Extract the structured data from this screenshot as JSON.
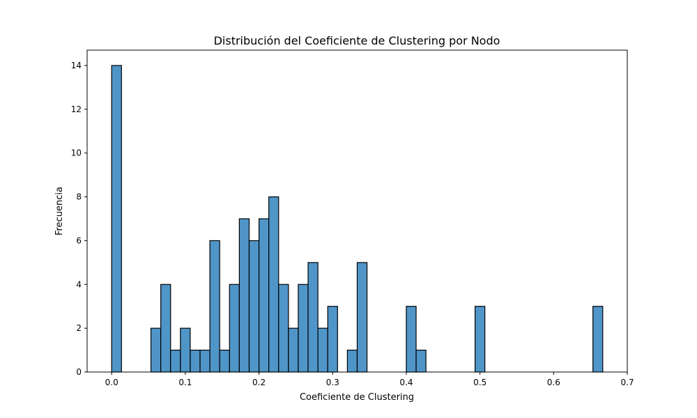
{
  "chart_data": {
    "type": "bar",
    "title": "Distribución del Coeficiente de Clustering por Nodo",
    "xlabel": "Coeficiente de Clustering",
    "ylabel": "Frecuencia",
    "xlim": [
      -0.0333,
      0.7
    ],
    "ylim": [
      0,
      14.7
    ],
    "bin_width": 0.01333,
    "x_ticks": [
      0.0,
      0.1,
      0.2,
      0.3,
      0.4,
      0.5,
      0.6,
      0.7
    ],
    "x_tick_labels": [
      "0.0",
      "0.1",
      "0.2",
      "0.3",
      "0.4",
      "0.5",
      "0.6",
      "0.7"
    ],
    "y_ticks": [
      0,
      2,
      4,
      6,
      8,
      10,
      12,
      14
    ],
    "y_tick_labels": [
      "0",
      "2",
      "4",
      "6",
      "8",
      "10",
      "12",
      "14"
    ],
    "grid": false,
    "bar_color": "#5095c8",
    "edge_color": "#000000",
    "bins": [
      {
        "x0": 0.0,
        "count": 14
      },
      {
        "x0": 0.05333,
        "count": 2
      },
      {
        "x0": 0.06667,
        "count": 4
      },
      {
        "x0": 0.08,
        "count": 1
      },
      {
        "x0": 0.09333,
        "count": 2
      },
      {
        "x0": 0.10667,
        "count": 1
      },
      {
        "x0": 0.12,
        "count": 1
      },
      {
        "x0": 0.13333,
        "count": 6
      },
      {
        "x0": 0.14667,
        "count": 1
      },
      {
        "x0": 0.16,
        "count": 4
      },
      {
        "x0": 0.17333,
        "count": 7
      },
      {
        "x0": 0.18667,
        "count": 6
      },
      {
        "x0": 0.2,
        "count": 7
      },
      {
        "x0": 0.21333,
        "count": 8
      },
      {
        "x0": 0.22667,
        "count": 4
      },
      {
        "x0": 0.24,
        "count": 2
      },
      {
        "x0": 0.25333,
        "count": 4
      },
      {
        "x0": 0.26667,
        "count": 5
      },
      {
        "x0": 0.28,
        "count": 2
      },
      {
        "x0": 0.29333,
        "count": 3
      },
      {
        "x0": 0.32,
        "count": 1
      },
      {
        "x0": 0.33333,
        "count": 5
      },
      {
        "x0": 0.4,
        "count": 3
      },
      {
        "x0": 0.41333,
        "count": 1
      },
      {
        "x0": 0.49333,
        "count": 3
      },
      {
        "x0": 0.65333,
        "count": 3
      }
    ]
  }
}
